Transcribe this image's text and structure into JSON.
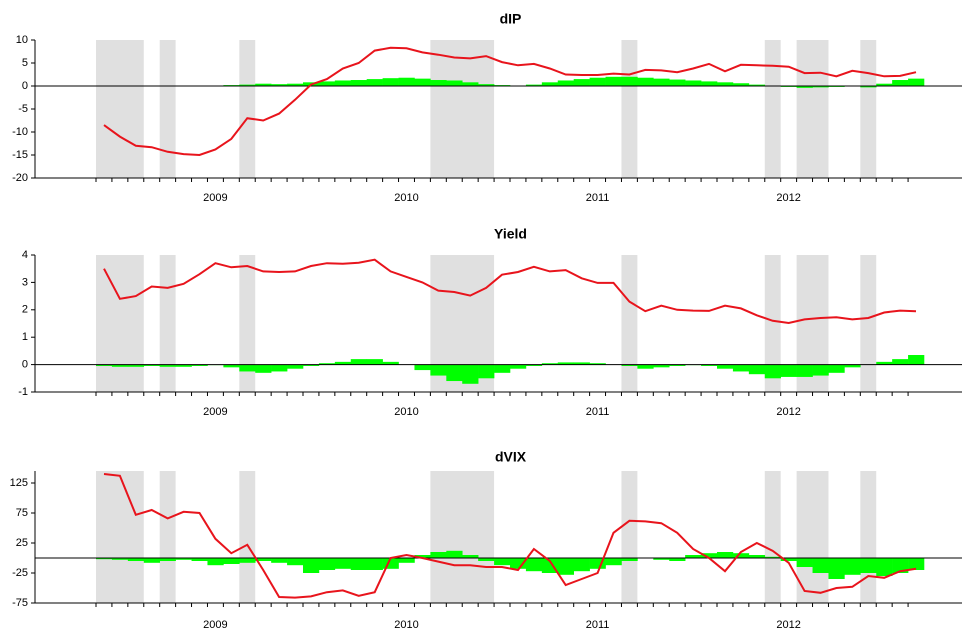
{
  "chart_data": [
    {
      "type": "bar_line",
      "title": "dIP",
      "categories": [
        null,
        null,
        null,
        null,
        null,
        null,
        null,
        "2009",
        null,
        null,
        null,
        null,
        null,
        null,
        null,
        null,
        null,
        null,
        null,
        "2010",
        null,
        null,
        null,
        null,
        null,
        null,
        null,
        null,
        null,
        null,
        null,
        "2011",
        null,
        null,
        null,
        null,
        null,
        null,
        null,
        null,
        null,
        null,
        null,
        "2012",
        null,
        null,
        null,
        null,
        null,
        null,
        null,
        null
      ],
      "line": [
        -8.5,
        -11,
        -13,
        -13.3,
        -14.3,
        -14.8,
        -15,
        -13.8,
        -11.5,
        -7,
        -7.5,
        -6,
        -3,
        0.3,
        1.5,
        3.8,
        5,
        7.7,
        8.3,
        8.2,
        7.3,
        6.8,
        6.2,
        6,
        6.5,
        5.2,
        4.5,
        4.8,
        3.8,
        2.5,
        2.4,
        2.4,
        2.7,
        2.5,
        3.5,
        3.4,
        3,
        3.8,
        4.8,
        3.2,
        4.6,
        4.5,
        4.4,
        4.2,
        2.8,
        2.9,
        2.1,
        3.3,
        2.8,
        2.1,
        2.2,
        3
      ],
      "bars": [
        0,
        0,
        0,
        0,
        0.1,
        0.1,
        0,
        0.1,
        0.2,
        0.3,
        0.5,
        0.4,
        0.5,
        0.8,
        1,
        1.2,
        1.3,
        1.5,
        1.7,
        1.8,
        1.6,
        1.3,
        1.2,
        0.8,
        0.4,
        0.2,
        0.1,
        0.3,
        0.8,
        1.2,
        1.5,
        1.8,
        2,
        2,
        1.8,
        1.6,
        1.4,
        1.2,
        1,
        0.8,
        0.6,
        0.3,
        0.1,
        -0.2,
        -0.4,
        -0.3,
        -0.2,
        0,
        -0.3,
        0.5,
        1.3,
        1.6
      ],
      "line_color": "#e8141c",
      "bar_color": "#00ff00",
      "shade_color": "#e0e0e0",
      "shaded": [
        [
          0,
          3
        ],
        [
          4,
          5
        ],
        [
          9,
          10
        ],
        [
          21,
          25
        ],
        [
          33,
          34
        ],
        [
          42,
          43
        ],
        [
          44,
          46
        ],
        [
          48,
          49
        ]
      ],
      "ylim": [
        -20,
        10
      ],
      "yticks": [
        10,
        5,
        0,
        -5,
        -10,
        -15,
        -20
      ]
    },
    {
      "type": "bar_line",
      "title": "Yield",
      "categories": [
        null,
        null,
        null,
        null,
        null,
        null,
        null,
        "2009",
        null,
        null,
        null,
        null,
        null,
        null,
        null,
        null,
        null,
        null,
        null,
        "2010",
        null,
        null,
        null,
        null,
        null,
        null,
        null,
        null,
        null,
        null,
        null,
        "2011",
        null,
        null,
        null,
        null,
        null,
        null,
        null,
        null,
        null,
        null,
        null,
        "2012",
        null,
        null,
        null,
        null,
        null,
        null,
        null,
        null
      ],
      "line": [
        3.5,
        2.4,
        2.5,
        2.85,
        2.8,
        2.95,
        3.3,
        3.7,
        3.55,
        3.6,
        3.4,
        3.38,
        3.4,
        3.6,
        3.7,
        3.68,
        3.72,
        3.83,
        3.4,
        3.2,
        3.0,
        2.7,
        2.65,
        2.52,
        2.8,
        3.28,
        3.38,
        3.57,
        3.4,
        3.45,
        3.15,
        2.98,
        2.98,
        2.3,
        1.95,
        2.15,
        2.0,
        1.97,
        1.96,
        2.15,
        2.05,
        1.8,
        1.6,
        1.52,
        1.65,
        1.7,
        1.73,
        1.65,
        1.7,
        1.9,
        1.97,
        1.95
      ],
      "bars": [
        -0.05,
        -0.08,
        -0.08,
        -0.05,
        -0.08,
        -0.08,
        -0.05,
        -0.02,
        -0.1,
        -0.25,
        -0.3,
        -0.25,
        -0.15,
        -0.05,
        0.05,
        0.1,
        0.2,
        0.2,
        0.1,
        0,
        -0.2,
        -0.4,
        -0.6,
        -0.7,
        -0.5,
        -0.3,
        -0.15,
        -0.05,
        0.05,
        0.08,
        0.08,
        0.05,
        0,
        -0.05,
        -0.15,
        -0.1,
        -0.05,
        -0.02,
        -0.05,
        -0.15,
        -0.25,
        -0.35,
        -0.5,
        -0.45,
        -0.45,
        -0.4,
        -0.3,
        -0.1,
        0,
        0.1,
        0.2,
        0.35
      ],
      "line_color": "#e8141c",
      "bar_color": "#00ff00",
      "shade_color": "#e0e0e0",
      "shaded": [
        [
          0,
          3
        ],
        [
          4,
          5
        ],
        [
          9,
          10
        ],
        [
          21,
          25
        ],
        [
          33,
          34
        ],
        [
          42,
          43
        ],
        [
          44,
          46
        ],
        [
          48,
          49
        ]
      ],
      "ylim": [
        -1,
        4
      ],
      "yticks": [
        4,
        3,
        2,
        1,
        0,
        -1
      ]
    },
    {
      "type": "bar_line",
      "title": "dVIX",
      "categories": [
        null,
        null,
        null,
        null,
        null,
        null,
        null,
        "2009",
        null,
        null,
        null,
        null,
        null,
        null,
        null,
        null,
        null,
        null,
        null,
        "2010",
        null,
        null,
        null,
        null,
        null,
        null,
        null,
        null,
        null,
        null,
        null,
        "2011",
        null,
        null,
        null,
        null,
        null,
        null,
        null,
        null,
        null,
        null,
        null,
        "2012",
        null,
        null,
        null,
        null,
        null,
        null,
        null,
        null
      ],
      "line": [
        140,
        137,
        72,
        80,
        66,
        77,
        75,
        32,
        8,
        22,
        -20,
        -65,
        -66,
        -64,
        -57,
        -54,
        -63,
        -57,
        0,
        5,
        0,
        -6,
        -12,
        -12,
        -15,
        -15,
        -20,
        15,
        -5,
        -45,
        -35,
        -25,
        42,
        62,
        61,
        58,
        42,
        15,
        0,
        -22,
        10,
        25,
        12,
        -8,
        -55,
        -58,
        -50,
        -48,
        -30,
        -33,
        -22,
        -18
      ],
      "bars": [
        -2,
        -3,
        -5,
        -8,
        -5,
        -3,
        -5,
        -12,
        -10,
        -8,
        -5,
        -8,
        -12,
        -25,
        -20,
        -18,
        -20,
        -20,
        -18,
        -8,
        5,
        10,
        12,
        5,
        -5,
        -12,
        -18,
        -22,
        -25,
        -28,
        -22,
        -18,
        -12,
        -5,
        0,
        -3,
        -5,
        5,
        8,
        10,
        8,
        5,
        2,
        -5,
        -15,
        -25,
        -35,
        -28,
        -25,
        -30,
        -25,
        -20
      ],
      "line_color": "#e8141c",
      "bar_color": "#00ff00",
      "shade_color": "#e0e0e0",
      "shaded": [
        [
          0,
          3
        ],
        [
          4,
          5
        ],
        [
          9,
          10
        ],
        [
          21,
          25
        ],
        [
          33,
          34
        ],
        [
          42,
          43
        ],
        [
          44,
          46
        ],
        [
          48,
          49
        ]
      ],
      "ylim": [
        -75,
        145
      ],
      "yticks": [
        125,
        75,
        25,
        -25,
        -75
      ]
    }
  ]
}
